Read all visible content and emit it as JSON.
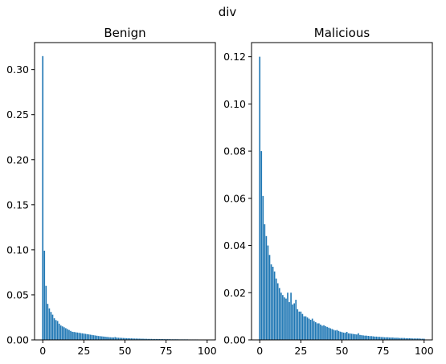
{
  "figure": {
    "suptitle": "div"
  },
  "colors": {
    "bar": "#1f77b4"
  },
  "chart_data": [
    {
      "type": "bar",
      "title": "Benign",
      "xlabel": "",
      "ylabel": "",
      "xlim": [
        -5,
        105
      ],
      "ylim": [
        0,
        0.33
      ],
      "xticks": [
        0,
        25,
        50,
        75,
        100
      ],
      "yticks": [
        0.0,
        0.05,
        0.1,
        0.15,
        0.2,
        0.25,
        0.3
      ],
      "ytick_labels": [
        "0.00",
        "0.05",
        "0.10",
        "0.15",
        "0.20",
        "0.25",
        "0.30"
      ],
      "x": [
        0,
        1,
        2,
        3,
        4,
        5,
        6,
        7,
        8,
        9,
        10,
        11,
        12,
        13,
        14,
        15,
        16,
        17,
        18,
        19,
        20,
        21,
        22,
        23,
        24,
        25,
        26,
        27,
        28,
        29,
        30,
        31,
        32,
        33,
        34,
        35,
        36,
        37,
        38,
        39,
        40,
        41,
        42,
        43,
        44,
        45,
        46,
        47,
        48,
        49,
        50,
        51,
        52,
        53,
        54,
        55,
        56,
        57,
        58,
        59,
        60,
        61,
        62,
        63,
        64,
        65,
        66,
        67,
        68,
        69,
        70,
        71,
        72,
        73,
        74,
        75,
        76,
        77,
        78,
        79,
        80,
        81,
        82,
        83,
        84,
        85,
        86,
        87,
        88,
        89,
        90,
        91,
        92,
        93,
        94,
        95,
        96,
        97,
        98,
        99,
        100
      ],
      "values": [
        0.315,
        0.099,
        0.06,
        0.04,
        0.035,
        0.031,
        0.028,
        0.024,
        0.022,
        0.021,
        0.018,
        0.016,
        0.015,
        0.014,
        0.013,
        0.012,
        0.011,
        0.01,
        0.009,
        0.0088,
        0.0085,
        0.0082,
        0.0079,
        0.0076,
        0.0073,
        0.007,
        0.0067,
        0.0064,
        0.0061,
        0.0058,
        0.0055,
        0.0052,
        0.0049,
        0.0046,
        0.0043,
        0.0041,
        0.0039,
        0.0037,
        0.0035,
        0.0033,
        0.0031,
        0.0029,
        0.0028,
        0.0027,
        0.0031,
        0.0026,
        0.0024,
        0.0023,
        0.0022,
        0.0021,
        0.002,
        0.0019,
        0.0018,
        0.0017,
        0.0017,
        0.0016,
        0.0015,
        0.0015,
        0.0014,
        0.0014,
        0.0013,
        0.0013,
        0.0012,
        0.0012,
        0.0011,
        0.0011,
        0.0011,
        0.001,
        0.001,
        0.001,
        0.0009,
        0.0009,
        0.0009,
        0.0009,
        0.0008,
        0.0008,
        0.0008,
        0.0008,
        0.0007,
        0.0007,
        0.0007,
        0.0007,
        0.0007,
        0.0006,
        0.0006,
        0.0006,
        0.0006,
        0.0006,
        0.0006,
        0.0005,
        0.0005,
        0.0005,
        0.0005,
        0.0005,
        0.0005,
        0.0004,
        0.0004,
        0.0004,
        0.0004,
        0.0004,
        0.0004
      ]
    },
    {
      "type": "bar",
      "title": "Malicious",
      "xlabel": "",
      "ylabel": "",
      "xlim": [
        -5,
        105
      ],
      "ylim": [
        0,
        0.126
      ],
      "xticks": [
        0,
        25,
        50,
        75,
        100
      ],
      "yticks": [
        0.0,
        0.02,
        0.04,
        0.06,
        0.08,
        0.1,
        0.12
      ],
      "ytick_labels": [
        "0.00",
        "0.02",
        "0.04",
        "0.06",
        "0.08",
        "0.10",
        "0.12"
      ],
      "x": [
        0,
        1,
        2,
        3,
        4,
        5,
        6,
        7,
        8,
        9,
        10,
        11,
        12,
        13,
        14,
        15,
        16,
        17,
        18,
        19,
        20,
        21,
        22,
        23,
        24,
        25,
        26,
        27,
        28,
        29,
        30,
        31,
        32,
        33,
        34,
        35,
        36,
        37,
        38,
        39,
        40,
        41,
        42,
        43,
        44,
        45,
        46,
        47,
        48,
        49,
        50,
        51,
        52,
        53,
        54,
        55,
        56,
        57,
        58,
        59,
        60,
        61,
        62,
        63,
        64,
        65,
        66,
        67,
        68,
        69,
        70,
        71,
        72,
        73,
        74,
        75,
        76,
        77,
        78,
        79,
        80,
        81,
        82,
        83,
        84,
        85,
        86,
        87,
        88,
        89,
        90,
        91,
        92,
        93,
        94,
        95,
        96,
        97,
        98,
        99,
        100
      ],
      "values": [
        0.12,
        0.08,
        0.061,
        0.049,
        0.044,
        0.04,
        0.036,
        0.032,
        0.031,
        0.029,
        0.026,
        0.024,
        0.022,
        0.02,
        0.019,
        0.018,
        0.0175,
        0.02,
        0.016,
        0.02,
        0.015,
        0.0155,
        0.017,
        0.013,
        0.012,
        0.012,
        0.011,
        0.01,
        0.01,
        0.0095,
        0.009,
        0.0085,
        0.009,
        0.008,
        0.0075,
        0.007,
        0.007,
        0.0065,
        0.006,
        0.0062,
        0.0058,
        0.0055,
        0.0052,
        0.0049,
        0.0046,
        0.0043,
        0.004,
        0.0042,
        0.0038,
        0.0035,
        0.0033,
        0.0031,
        0.003,
        0.0034,
        0.0028,
        0.0027,
        0.0026,
        0.0025,
        0.0024,
        0.0023,
        0.0028,
        0.0021,
        0.002,
        0.0019,
        0.0018,
        0.0018,
        0.0017,
        0.0016,
        0.0016,
        0.0015,
        0.0014,
        0.0014,
        0.0013,
        0.0013,
        0.0012,
        0.0012,
        0.0011,
        0.0011,
        0.0011,
        0.001,
        0.001,
        0.001,
        0.0009,
        0.0009,
        0.0009,
        0.0008,
        0.0008,
        0.0008,
        0.0008,
        0.0007,
        0.0007,
        0.0007,
        0.0007,
        0.0006,
        0.0006,
        0.0006,
        0.0006,
        0.0006,
        0.0005,
        0.0005,
        0.0005
      ]
    }
  ]
}
